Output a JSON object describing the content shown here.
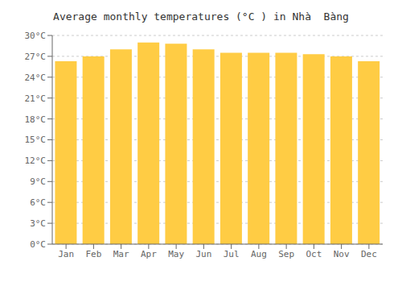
{
  "chart_data": {
    "type": "bar",
    "title": "Average monthly temperatures (°C ) in Nhà  Bàng",
    "categories": [
      "Jan",
      "Feb",
      "Mar",
      "Apr",
      "May",
      "Jun",
      "Jul",
      "Aug",
      "Sep",
      "Oct",
      "Nov",
      "Dec"
    ],
    "values": [
      26.3,
      27.0,
      28.0,
      29.0,
      28.8,
      28.0,
      27.5,
      27.5,
      27.5,
      27.3,
      27.0,
      26.3
    ],
    "color": "#FFCC44",
    "ylim": [
      0,
      30
    ],
    "yticks": [
      {
        "value": 0,
        "label": "0°C"
      },
      {
        "value": 3,
        "label": "3°C"
      },
      {
        "value": 6,
        "label": "6°C"
      },
      {
        "value": 9,
        "label": "9°C"
      },
      {
        "value": 12,
        "label": "12°C"
      },
      {
        "value": 15,
        "label": "15°C"
      },
      {
        "value": 18,
        "label": "18°C"
      },
      {
        "value": 21,
        "label": "21°C"
      },
      {
        "value": 24,
        "label": "24°C"
      },
      {
        "value": 27,
        "label": "27°C"
      },
      {
        "value": 30,
        "label": "30°C"
      }
    ],
    "grid": true
  }
}
